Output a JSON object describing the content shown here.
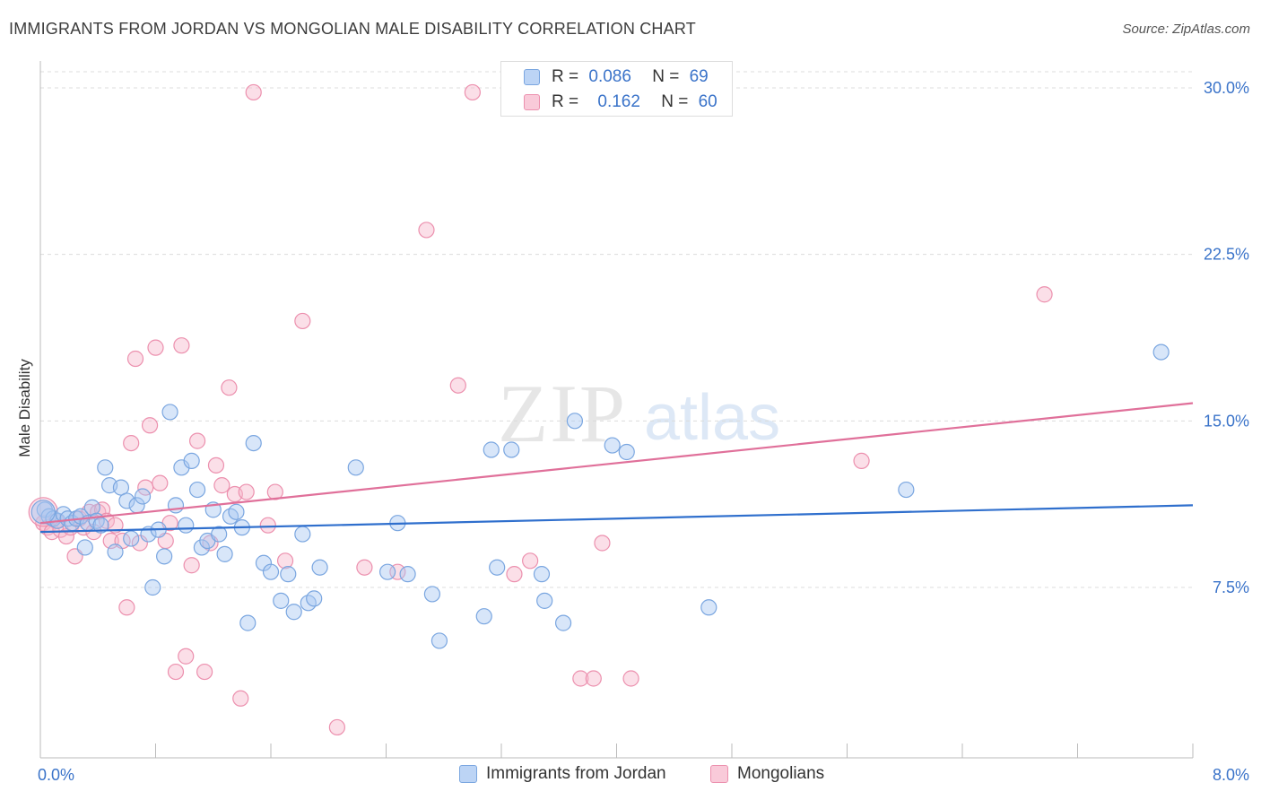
{
  "title": "IMMIGRANTS FROM JORDAN VS MONGOLIAN MALE DISABILITY CORRELATION CHART",
  "source": "Source: ZipAtlas.com",
  "watermark": {
    "zip": "ZIP",
    "atlas": "atlas"
  },
  "legend": {
    "r_label": "R =",
    "n_label": "N =",
    "rows": [
      {
        "series": "Immigrants from Jordan",
        "r": "0.086",
        "n": "69"
      },
      {
        "series": "Mongolians",
        "r": "0.162",
        "n": "60"
      }
    ]
  },
  "colors": {
    "jordan_fill": "#a9c8f2",
    "jordan_stroke": "#7aa6e0",
    "jordan_line": "#2f6fcd",
    "mongol_fill": "#f6b8cc",
    "mongol_stroke": "#ec90ae",
    "mongol_line": "#e0709a",
    "tick_label": "#3a73c9",
    "grid": "#dcdcdc",
    "axis": "#bbbbbb"
  },
  "chart_data": {
    "type": "scatter",
    "title": "IMMIGRANTS FROM JORDAN VS MONGOLIAN MALE DISABILITY CORRELATION CHART",
    "xlabel": "",
    "ylabel": "Male Disability",
    "xlim": [
      0,
      8
    ],
    "ylim": [
      0,
      31
    ],
    "x_tick_labels": [
      {
        "value": 0,
        "label": "0.0%"
      },
      {
        "value": 8,
        "label": "8.0%"
      }
    ],
    "y_ticks": [
      {
        "value": 7.5,
        "label": "7.5%"
      },
      {
        "value": 15,
        "label": "15.0%"
      },
      {
        "value": 22.5,
        "label": "22.5%"
      },
      {
        "value": 30,
        "label": "30.0%"
      }
    ],
    "grid": "horizontal dashed",
    "legend_position": "top-center",
    "series": [
      {
        "name": "Immigrants from Jordan",
        "r": 0.086,
        "n": 69,
        "trend": {
          "x": [
            0,
            8
          ],
          "y": [
            10.0,
            11.2
          ]
        },
        "points": [
          [
            0.03,
            11.0
          ],
          [
            0.06,
            10.7
          ],
          [
            0.09,
            10.6
          ],
          [
            0.12,
            10.5
          ],
          [
            0.16,
            10.8
          ],
          [
            0.19,
            10.6
          ],
          [
            0.22,
            10.4
          ],
          [
            0.25,
            10.6
          ],
          [
            0.28,
            10.7
          ],
          [
            0.31,
            9.3
          ],
          [
            0.33,
            10.4
          ],
          [
            0.36,
            11.1
          ],
          [
            0.39,
            10.5
          ],
          [
            0.42,
            10.3
          ],
          [
            0.45,
            12.9
          ],
          [
            0.48,
            12.1
          ],
          [
            0.52,
            9.1
          ],
          [
            0.56,
            12.0
          ],
          [
            0.6,
            11.4
          ],
          [
            0.63,
            9.7
          ],
          [
            0.67,
            11.2
          ],
          [
            0.71,
            11.6
          ],
          [
            0.75,
            9.9
          ],
          [
            0.78,
            7.5
          ],
          [
            0.82,
            10.1
          ],
          [
            0.86,
            8.9
          ],
          [
            0.9,
            15.4
          ],
          [
            0.94,
            11.2
          ],
          [
            0.98,
            12.9
          ],
          [
            1.01,
            10.3
          ],
          [
            1.05,
            13.2
          ],
          [
            1.09,
            11.9
          ],
          [
            1.12,
            9.3
          ],
          [
            1.16,
            9.6
          ],
          [
            1.2,
            11.0
          ],
          [
            1.24,
            9.9
          ],
          [
            1.28,
            9.0
          ],
          [
            1.32,
            10.7
          ],
          [
            1.36,
            10.9
          ],
          [
            1.4,
            10.2
          ],
          [
            1.44,
            5.9
          ],
          [
            1.48,
            14.0
          ],
          [
            1.55,
            8.6
          ],
          [
            1.6,
            8.2
          ],
          [
            1.67,
            6.9
          ],
          [
            1.72,
            8.1
          ],
          [
            1.76,
            6.4
          ],
          [
            1.82,
            9.9
          ],
          [
            1.86,
            6.8
          ],
          [
            1.9,
            7.0
          ],
          [
            1.94,
            8.4
          ],
          [
            2.19,
            12.9
          ],
          [
            2.41,
            8.2
          ],
          [
            2.48,
            10.4
          ],
          [
            2.55,
            8.1
          ],
          [
            2.72,
            7.2
          ],
          [
            2.77,
            5.1
          ],
          [
            3.08,
            6.2
          ],
          [
            3.13,
            13.7
          ],
          [
            3.17,
            8.4
          ],
          [
            3.27,
            13.7
          ],
          [
            3.48,
            8.1
          ],
          [
            3.5,
            6.9
          ],
          [
            3.63,
            5.9
          ],
          [
            3.71,
            15.0
          ],
          [
            3.97,
            13.9
          ],
          [
            4.07,
            13.6
          ],
          [
            4.64,
            6.6
          ],
          [
            6.01,
            11.9
          ],
          [
            7.78,
            18.1
          ]
        ]
      },
      {
        "name": "Mongolians",
        "r": 0.162,
        "n": 60,
        "trend": {
          "x": [
            0,
            8
          ],
          "y": [
            10.4,
            15.8
          ]
        },
        "points": [
          [
            0.02,
            10.4
          ],
          [
            0.05,
            10.2
          ],
          [
            0.08,
            10.0
          ],
          [
            0.11,
            10.5
          ],
          [
            0.14,
            10.1
          ],
          [
            0.18,
            9.8
          ],
          [
            0.21,
            10.2
          ],
          [
            0.24,
            8.9
          ],
          [
            0.27,
            10.6
          ],
          [
            0.3,
            10.2
          ],
          [
            0.34,
            10.9
          ],
          [
            0.37,
            10.0
          ],
          [
            0.4,
            10.9
          ],
          [
            0.43,
            11.0
          ],
          [
            0.46,
            10.5
          ],
          [
            0.49,
            9.6
          ],
          [
            0.52,
            10.3
          ],
          [
            0.57,
            9.6
          ],
          [
            0.6,
            6.6
          ],
          [
            0.63,
            14.0
          ],
          [
            0.66,
            17.8
          ],
          [
            0.69,
            9.5
          ],
          [
            0.73,
            12.0
          ],
          [
            0.76,
            14.8
          ],
          [
            0.8,
            18.3
          ],
          [
            0.83,
            12.2
          ],
          [
            0.87,
            9.6
          ],
          [
            0.9,
            10.4
          ],
          [
            0.94,
            3.7
          ],
          [
            0.98,
            18.4
          ],
          [
            1.01,
            4.4
          ],
          [
            1.05,
            8.5
          ],
          [
            1.09,
            14.1
          ],
          [
            1.14,
            3.7
          ],
          [
            1.18,
            9.5
          ],
          [
            1.22,
            13.0
          ],
          [
            1.26,
            12.1
          ],
          [
            1.31,
            16.5
          ],
          [
            1.35,
            11.7
          ],
          [
            1.39,
            2.5
          ],
          [
            1.43,
            11.8
          ],
          [
            1.48,
            29.8
          ],
          [
            1.58,
            10.3
          ],
          [
            1.63,
            11.8
          ],
          [
            1.7,
            8.7
          ],
          [
            1.82,
            19.5
          ],
          [
            2.06,
            1.2
          ],
          [
            2.25,
            8.4
          ],
          [
            2.48,
            8.2
          ],
          [
            2.68,
            23.6
          ],
          [
            2.9,
            16.6
          ],
          [
            3.0,
            29.8
          ],
          [
            3.29,
            8.1
          ],
          [
            3.4,
            8.7
          ],
          [
            3.75,
            3.4
          ],
          [
            3.84,
            3.4
          ],
          [
            3.9,
            9.5
          ],
          [
            4.1,
            3.4
          ],
          [
            5.7,
            13.2
          ],
          [
            6.97,
            20.7
          ]
        ]
      }
    ]
  }
}
